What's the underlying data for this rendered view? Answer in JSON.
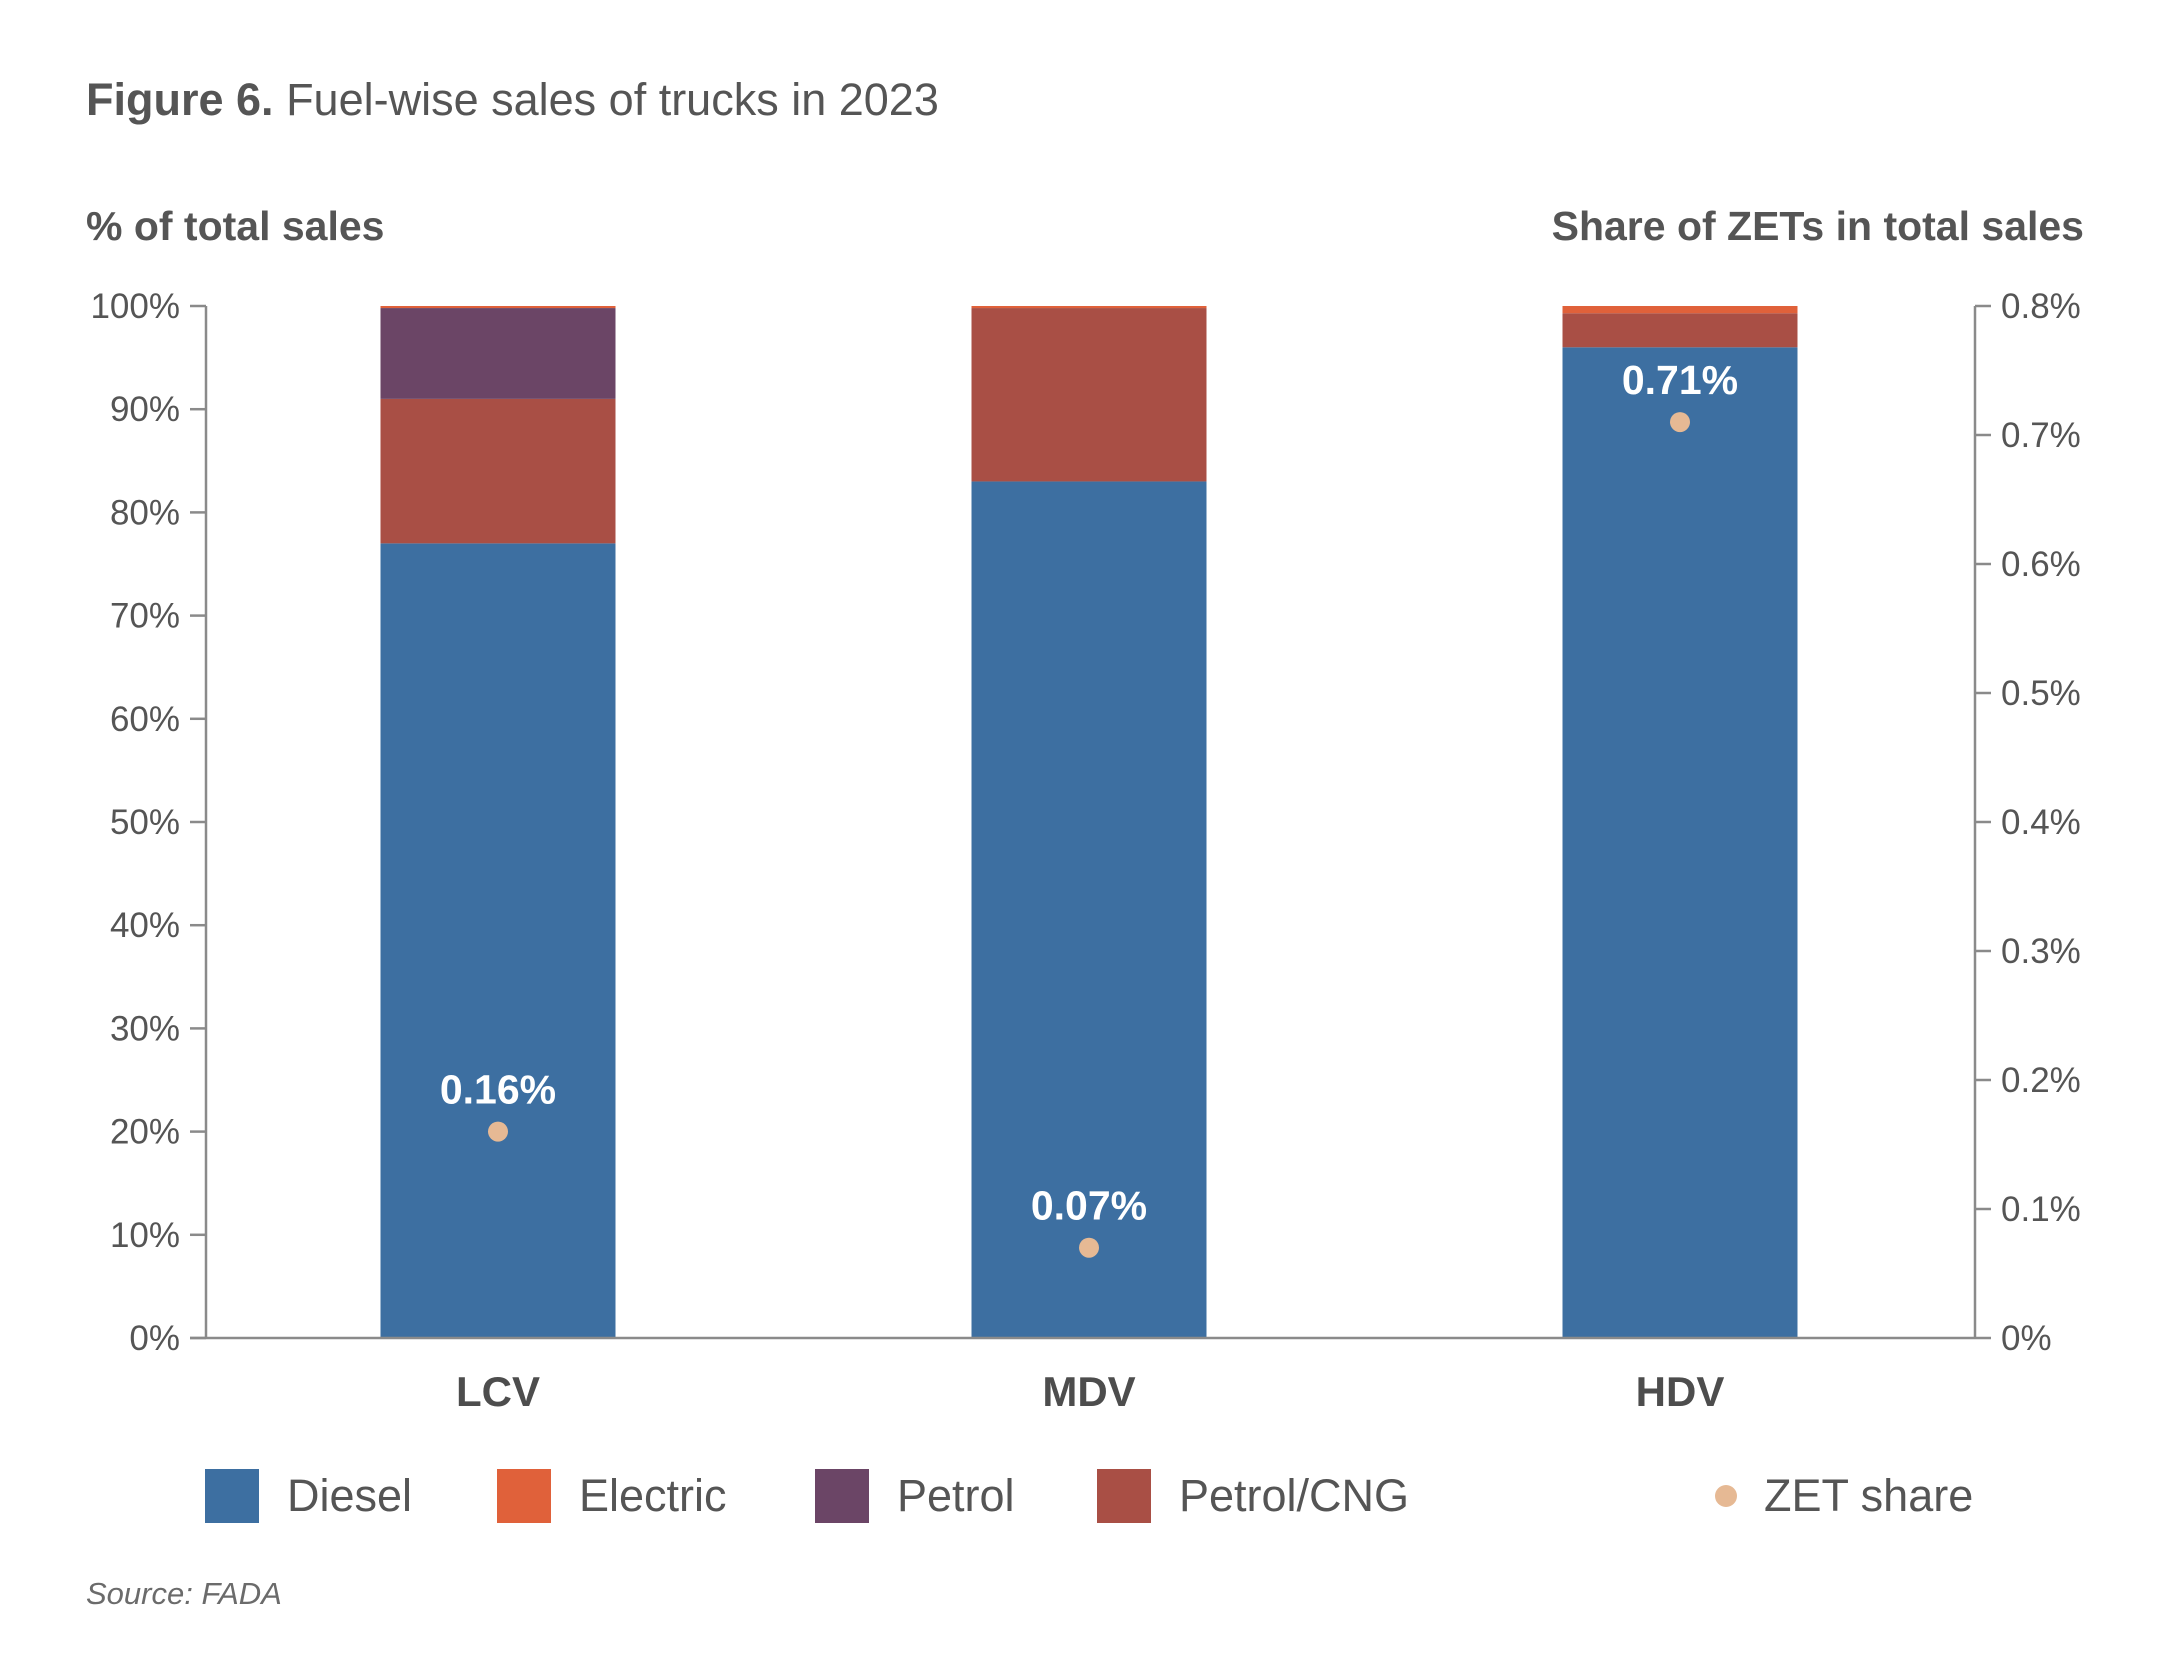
{
  "figure": {
    "number": "Figure 6.",
    "title": "Fuel-wise sales of trucks in 2023",
    "source": "Source: FADA"
  },
  "colors": {
    "Diesel": "#3d6fa1",
    "Electric": "#e0613a",
    "Petrol": "#6b4566",
    "Petrol/CNG": "#a94f45",
    "ZET share": "#e6b994",
    "axis": "#8a8a8a",
    "text": "#555555"
  },
  "chart_data": {
    "type": "bar",
    "stacked": true,
    "categories": [
      "LCV",
      "MDV",
      "HDV"
    ],
    "ylabel": "% of total sales",
    "y2label": "Share of ZETs in total sales",
    "ylim": [
      0,
      100
    ],
    "y2lim": [
      0,
      0.8
    ],
    "yticks": [
      "0%",
      "10%",
      "20%",
      "30%",
      "40%",
      "50%",
      "60%",
      "70%",
      "80%",
      "90%",
      "100%"
    ],
    "y2ticks": [
      "0%",
      "0.1%",
      "0.2%",
      "0.3%",
      "0.4%",
      "0.5%",
      "0.6%",
      "0.7%",
      "0.8%"
    ],
    "series": [
      {
        "name": "Diesel",
        "values": [
          77.0,
          83.0,
          96.0
        ]
      },
      {
        "name": "Petrol/CNG",
        "values": [
          14.0,
          16.8,
          3.3
        ]
      },
      {
        "name": "Petrol",
        "values": [
          8.8,
          0.0,
          0.0
        ]
      },
      {
        "name": "Electric",
        "values": [
          0.2,
          0.2,
          0.7
        ]
      }
    ],
    "zet_share": {
      "name": "ZET share",
      "axis": "secondary",
      "values": [
        0.16,
        0.07,
        0.71
      ],
      "labels": [
        "0.16%",
        "0.07%",
        "0.71%"
      ]
    },
    "legend": {
      "placement": "bottom",
      "items": [
        "Diesel",
        "Electric",
        "Petrol",
        "Petrol/CNG",
        "ZET share"
      ]
    },
    "grid": false
  }
}
